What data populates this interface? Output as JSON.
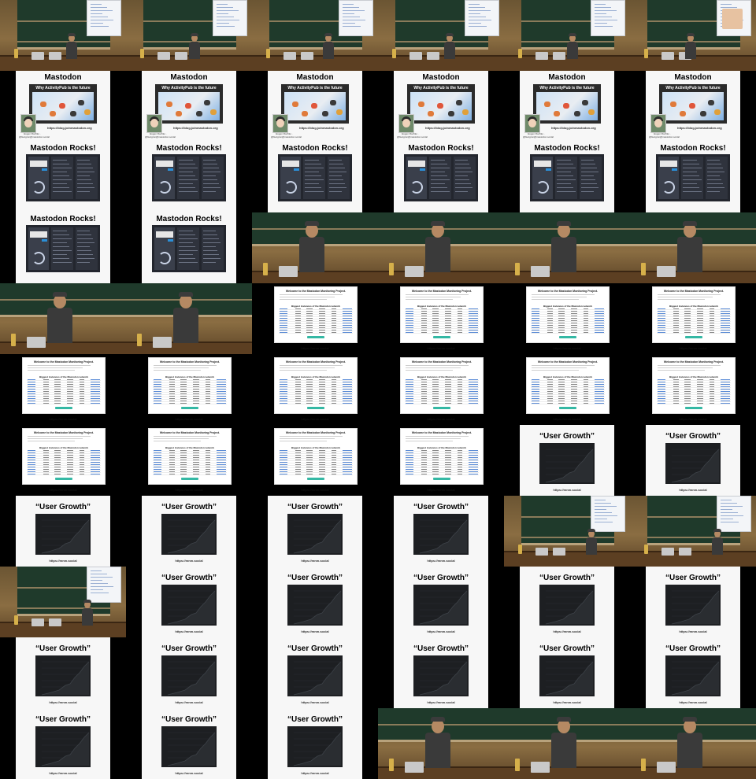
{
  "slides": {
    "mastodon": {
      "title": "Mastodon",
      "subtitle": "Why ActivityPub is the future",
      "url": "https://blog.joinmastodon.org",
      "author_caption": "Eugen Rochko · @Gargron@mastodon.social"
    },
    "rocks": {
      "title": "Mastodon Rocks!"
    },
    "stats": {
      "heading": "Welcome to the Mastodon Monitoring Project.",
      "subheading": "Biggest instances of the Mastodon network",
      "url": "https://mnm.social"
    },
    "growth": {
      "title": "“User Growth”",
      "url": "https://mnm.social"
    }
  },
  "tiles": [
    {
      "t": "photo",
      "v": "a"
    },
    {
      "t": "photo",
      "v": "b"
    },
    {
      "t": "photo",
      "v": "c"
    },
    {
      "t": "photo",
      "v": "a"
    },
    {
      "t": "photo",
      "v": "b"
    },
    {
      "t": "photo",
      "v": "d"
    },
    {
      "t": "mastodon"
    },
    {
      "t": "mastodon"
    },
    {
      "t": "mastodon"
    },
    {
      "t": "mastodon"
    },
    {
      "t": "mastodon"
    },
    {
      "t": "mastodon"
    },
    {
      "t": "rocks"
    },
    {
      "t": "rocks"
    },
    {
      "t": "rocks"
    },
    {
      "t": "rocks"
    },
    {
      "t": "rocks"
    },
    {
      "t": "rocks"
    },
    {
      "t": "rocks"
    },
    {
      "t": "rocks"
    },
    {
      "t": "closeup"
    },
    {
      "t": "closeup"
    },
    {
      "t": "closeup"
    },
    {
      "t": "closeup"
    },
    {
      "t": "closeup"
    },
    {
      "t": "closeup"
    },
    {
      "t": "stats"
    },
    {
      "t": "stats"
    },
    {
      "t": "stats"
    },
    {
      "t": "stats"
    },
    {
      "t": "stats"
    },
    {
      "t": "stats"
    },
    {
      "t": "stats"
    },
    {
      "t": "stats"
    },
    {
      "t": "stats"
    },
    {
      "t": "stats"
    },
    {
      "t": "stats"
    },
    {
      "t": "stats"
    },
    {
      "t": "stats"
    },
    {
      "t": "stats"
    },
    {
      "t": "growth"
    },
    {
      "t": "growth"
    },
    {
      "t": "growth"
    },
    {
      "t": "growth"
    },
    {
      "t": "growth"
    },
    {
      "t": "growth"
    },
    {
      "t": "photo",
      "v": "e"
    },
    {
      "t": "photo",
      "v": "e"
    },
    {
      "t": "photo",
      "v": "e"
    },
    {
      "t": "growth"
    },
    {
      "t": "growth"
    },
    {
      "t": "growth"
    },
    {
      "t": "growth"
    },
    {
      "t": "growth"
    },
    {
      "t": "growth"
    },
    {
      "t": "growth"
    },
    {
      "t": "growth"
    },
    {
      "t": "growth"
    },
    {
      "t": "growth"
    },
    {
      "t": "growth"
    },
    {
      "t": "growth"
    },
    {
      "t": "growth"
    },
    {
      "t": "growth"
    },
    {
      "t": "closeup"
    },
    {
      "t": "closeup"
    },
    {
      "t": "closeup"
    }
  ]
}
